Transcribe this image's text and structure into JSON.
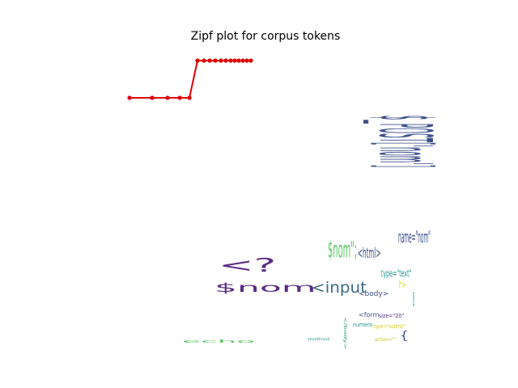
{
  "chart_data": [
    {
      "type": "line",
      "title": "Zipf plot for  corpus tokens",
      "xlabel": "",
      "ylabel": "",
      "grid": false,
      "axes_visible": false,
      "line_color": "#e00000",
      "marker": "circle",
      "x": [
        1,
        2,
        3,
        4,
        5,
        6,
        7,
        8,
        9,
        10,
        11,
        12,
        13,
        14,
        15,
        16,
        17
      ],
      "y": [
        1,
        1,
        1,
        1,
        1,
        2,
        2,
        2,
        2,
        2,
        2,
        2,
        2,
        2,
        2,
        2,
        2
      ]
    },
    {
      "type": "wordcloud",
      "words": [
        {
          "text": "$_POST['nom']",
          "color": "#3b4f8a",
          "rotation": 90
        },
        {
          "text": "$nom\";",
          "color": "#5cc863",
          "rotation": 0
        },
        {
          "text": "<html>",
          "color": "#3b4f8a",
          "rotation": 0
        },
        {
          "text": "name=\"nom\"",
          "color": "#3b4f8a",
          "rotation": 0
        },
        {
          "text": "<?",
          "color": "#5b2a86",
          "rotation": 0
        },
        {
          "text": "$nom",
          "color": "#5b2a86",
          "rotation": 0
        },
        {
          "text": "<input",
          "color": "#3b6a8c",
          "rotation": 0
        },
        {
          "text": "type=\"text\"",
          "color": "#21918c",
          "rotation": 0
        },
        {
          "text": "<body>",
          "color": "#3b4f8a",
          "rotation": 0
        },
        {
          "text": "?>",
          "color": "#d8d020",
          "rotation": 0
        },
        {
          "text": "<form",
          "color": "#3b4f8a",
          "rotation": 0
        },
        {
          "text": "size=\"20\"",
          "color": "#5b2a86",
          "rotation": 0
        },
        {
          "text": "numero",
          "color": "#21918c",
          "rotation": 0
        },
        {
          "text": "type=\"submit\"",
          "color": "#d8d020",
          "rotation": 0
        },
        {
          "text": "</body>",
          "color": "#2a9d6a",
          "rotation": 90
        },
        {
          "text": "echo",
          "color": "#5cc863",
          "rotation": 0
        },
        {
          "text": "method",
          "color": "#21918c",
          "rotation": 0
        },
        {
          "text": "action=\"\"",
          "color": "#c8c020",
          "rotation": 0
        },
        {
          "text": "value",
          "color": "#21918c",
          "rotation": 90
        },
        {
          "text": "{",
          "color": "#3b4f8a",
          "rotation": 0
        }
      ]
    }
  ]
}
